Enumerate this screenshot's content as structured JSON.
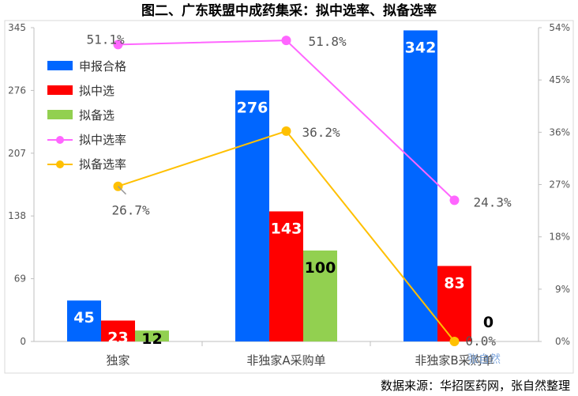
{
  "chart_data": {
    "type": "bar",
    "title": "图二、广东联盟中成药集采：拟中选率、拟备选率",
    "categories": [
      "独家",
      "非独家A采购单",
      "非独家B采购单"
    ],
    "series": [
      {
        "name": "申报合格",
        "values": [
          45,
          276,
          342
        ],
        "color": "#0066ff",
        "label_color": "#ffffff"
      },
      {
        "name": "拟中选",
        "values": [
          23,
          143,
          83
        ],
        "color": "#ff0000",
        "label_color": "#ffffff"
      },
      {
        "name": "拟备选",
        "values": [
          12,
          100,
          0
        ],
        "color": "#92d050",
        "label_color": "#000000"
      }
    ],
    "lines": [
      {
        "name": "拟中选率",
        "values": [
          51.1,
          51.8,
          24.3
        ],
        "labels": [
          "51.1%",
          "51.8%",
          "24.3%"
        ],
        "color": "#ff66ff"
      },
      {
        "name": "拟备选率",
        "values": [
          26.7,
          36.2,
          0.0
        ],
        "labels": [
          "26.7%",
          "36.2%",
          "0.0%"
        ],
        "color": "#ffc000"
      }
    ],
    "y_left": {
      "ticks": [
        "0",
        "69",
        "138",
        "207",
        "276",
        "345"
      ],
      "ylim": [
        0,
        345
      ]
    },
    "y_right": {
      "ticks": [
        "0%",
        "9%",
        "18%",
        "27%",
        "36%",
        "45%",
        "54%"
      ],
      "ylim": [
        0,
        54
      ]
    },
    "legend_position": "top-left",
    "grid": false
  },
  "footer": {
    "source": "数据来源：华招医药网，张自然整理"
  },
  "watermark": "张自然"
}
